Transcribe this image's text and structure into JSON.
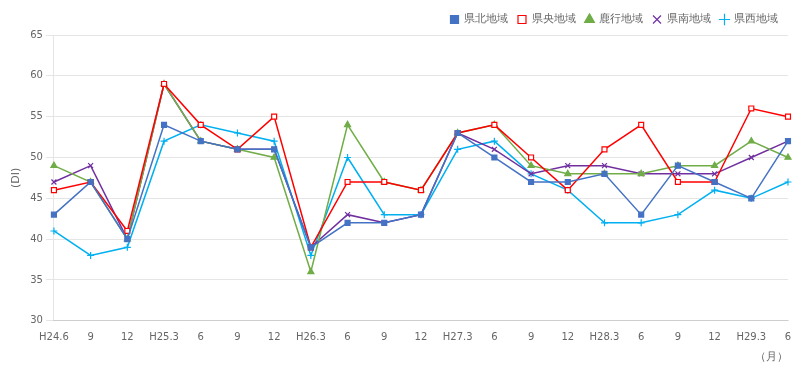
{
  "chart_data": {
    "type": "line",
    "xlabel": "（月）",
    "ylabel": "(DI)",
    "categories": [
      "H24.6",
      "9",
      "12",
      "H25.3",
      "6",
      "9",
      "12",
      "H26.3",
      "6",
      "9",
      "12",
      "H27.3",
      "6",
      "9",
      "12",
      "H28.3",
      "6",
      "9",
      "12",
      "H29.3",
      "6"
    ],
    "series": [
      {
        "name": "県北地域",
        "color": "#4472C4",
        "marker": "square",
        "values": [
          43,
          47,
          40,
          54,
          52,
          51,
          51,
          39,
          42,
          42,
          43,
          53,
          50,
          47,
          47,
          48,
          43,
          49,
          47,
          45,
          52
        ]
      },
      {
        "name": "県央地域",
        "color": "#FF0000",
        "marker": "hollow_square",
        "values": [
          46,
          47,
          41,
          59,
          54,
          51,
          55,
          39,
          47,
          47,
          46,
          53,
          54,
          50,
          46,
          51,
          54,
          47,
          47,
          56,
          55
        ]
      },
      {
        "name": "鹿行地域",
        "color": "#70AD47",
        "marker": "triangle",
        "values": [
          49,
          47,
          40,
          59,
          52,
          51,
          50,
          36,
          54,
          47,
          46,
          53,
          54,
          49,
          48,
          48,
          48,
          49,
          49,
          52,
          50
        ]
      },
      {
        "name": "県南地域",
        "color": "#7030A0",
        "marker": "x",
        "values": [
          47,
          49,
          40,
          59,
          52,
          51,
          51,
          39,
          43,
          42,
          43,
          53,
          51,
          48,
          49,
          49,
          48,
          48,
          48,
          50,
          52
        ]
      },
      {
        "name": "県西地域",
        "color": "#00B0F0",
        "marker": "plus",
        "values": [
          41,
          38,
          39,
          52,
          54,
          53,
          52,
          38,
          50,
          43,
          43,
          51,
          52,
          48,
          46,
          42,
          42,
          43,
          46,
          45,
          47
        ]
      }
    ],
    "ylim": [
      30,
      65
    ],
    "yticks": [
      30,
      35,
      40,
      45,
      50,
      55,
      60,
      65
    ],
    "grid": "y",
    "legend": "upper right"
  }
}
